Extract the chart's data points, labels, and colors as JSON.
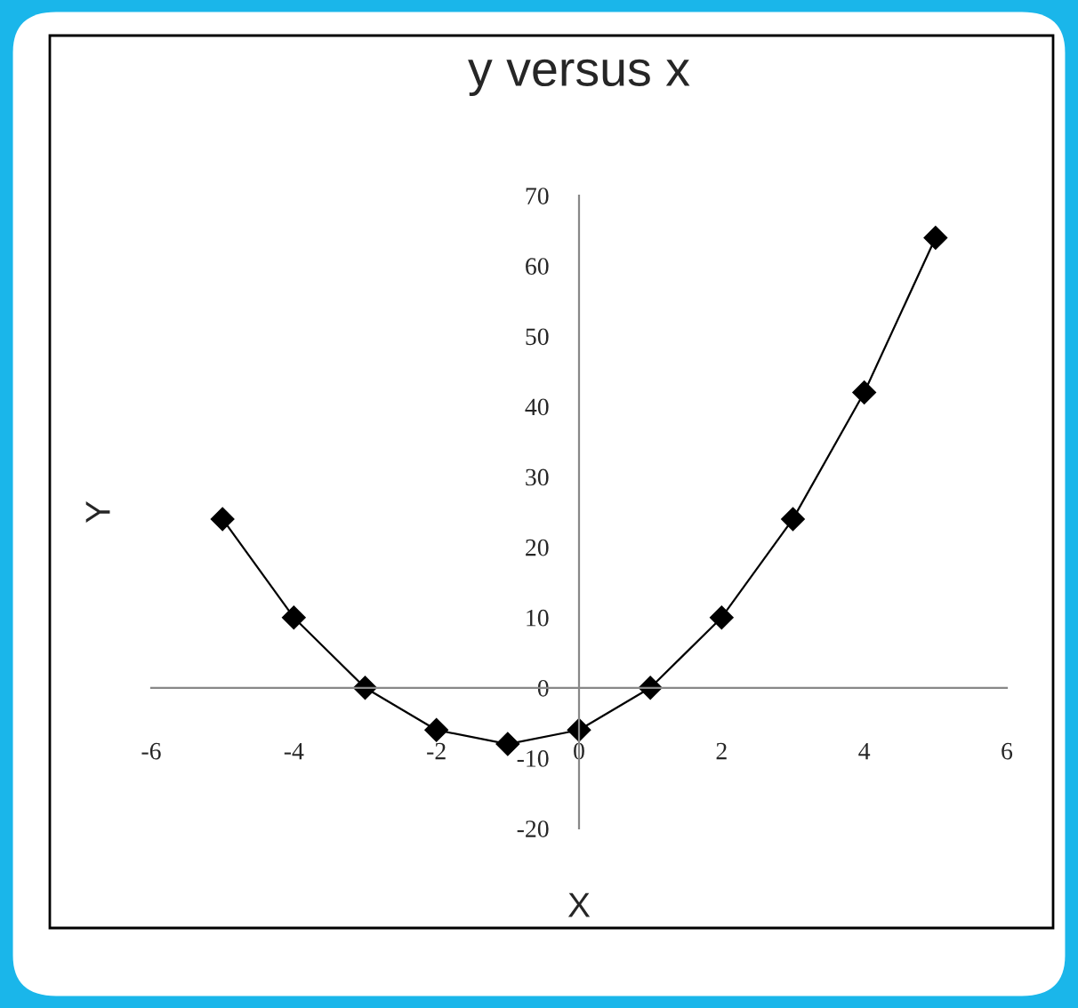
{
  "chart_data": {
    "type": "line",
    "title": "y versus x",
    "xlabel": "X",
    "ylabel": "Y",
    "x": [
      -5,
      -4,
      -3,
      -2,
      -1,
      0,
      1,
      2,
      3,
      4,
      5
    ],
    "series": [
      {
        "color": "#000000",
        "values": [
          24,
          10,
          0,
          -6,
          -8,
          -6,
          0,
          10,
          24,
          42,
          64
        ]
      }
    ],
    "xlim": [
      -6,
      6
    ],
    "xticks": [
      -6,
      -4,
      -2,
      0,
      2,
      4,
      6
    ],
    "ylim": [
      -20,
      70
    ],
    "yticks": [
      -20,
      -10,
      0,
      10,
      20,
      30,
      40,
      50,
      60,
      70
    ],
    "marker": "diamond",
    "line_style": "solid",
    "grid": false,
    "legend": false
  }
}
